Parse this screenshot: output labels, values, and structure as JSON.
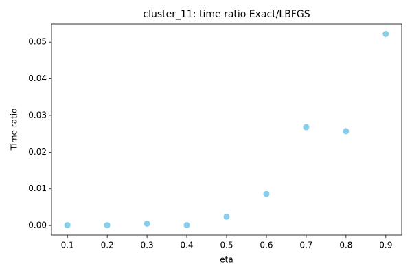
{
  "chart_data": {
    "type": "scatter",
    "title": "cluster_11: time ratio Exact/LBFGS",
    "x_label": "eta",
    "y_label": "Time ratio",
    "x": [
      0.1,
      0.2,
      0.3,
      0.4,
      0.5,
      0.6,
      0.7,
      0.8,
      0.9
    ],
    "values": [
      0.0001,
      0.0001,
      0.0005,
      0.0001,
      0.0024,
      0.0086,
      0.0268,
      0.0257,
      0.0522
    ],
    "color": "#87ceeb",
    "xlim": [
      0.06,
      0.94
    ],
    "xticks": [
      0.1,
      0.2,
      0.3,
      0.4,
      0.5,
      0.6,
      0.7,
      0.8,
      0.9
    ],
    "ylim": [
      -0.0026,
      0.0549
    ],
    "yticks": [
      {
        "value": 0,
        "label": "0.00"
      },
      0.01,
      0.02,
      0.03,
      0.04,
      0.05
    ],
    "grid": false
  }
}
